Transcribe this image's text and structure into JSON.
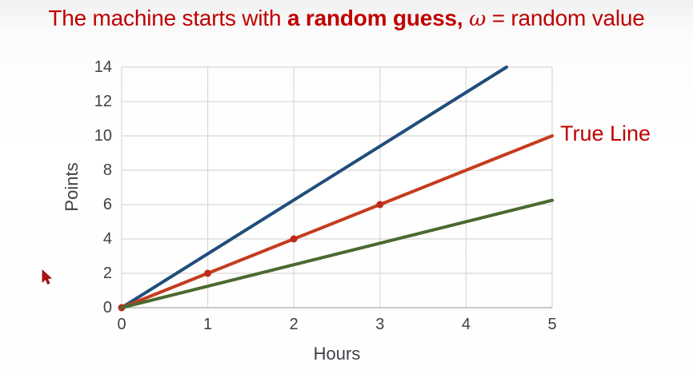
{
  "title": {
    "text_before": "The machine starts with ",
    "text_bold": "a random guess,",
    "omega": "ω",
    "text_after": "= random value"
  },
  "cursor": {
    "color": "#b31312",
    "outline": "#7a0b0b"
  },
  "chart_data": {
    "type": "line",
    "title": "",
    "xlabel": "Hours",
    "ylabel": "Points",
    "xlim": [
      0,
      5
    ],
    "ylim": [
      0,
      14
    ],
    "x_ticks": [
      0,
      1,
      2,
      3,
      4,
      5
    ],
    "y_ticks": [
      0,
      2,
      4,
      6,
      8,
      10,
      12,
      14
    ],
    "grid": true,
    "grid_color": "#d8d8d8",
    "axis_line_color": "#b8b8b8",
    "tick_label_color": "#404040",
    "legend": "none",
    "series": [
      {
        "name": "guess-line-steep",
        "color": "#1f4e79",
        "width": 4,
        "slope": 3.13,
        "points": [
          [
            0,
            0
          ],
          [
            4.47,
            14
          ]
        ]
      },
      {
        "name": "true-line",
        "label": "True Line",
        "label_color": "#c00000",
        "color": "#c53b1d",
        "width": 4,
        "slope": 2,
        "points": [
          [
            0,
            0
          ],
          [
            1,
            2
          ],
          [
            2,
            4
          ],
          [
            3,
            6
          ],
          [
            4,
            8
          ],
          [
            5,
            10
          ]
        ],
        "markers": [
          [
            0,
            0
          ],
          [
            1,
            2
          ],
          [
            2,
            4
          ],
          [
            3,
            6
          ]
        ],
        "marker_color": "#c1271a"
      },
      {
        "name": "guess-line-shallow",
        "color": "#4a6a2e",
        "width": 4,
        "slope": 1.25,
        "points": [
          [
            0,
            0
          ],
          [
            5,
            6.25
          ]
        ]
      }
    ]
  }
}
